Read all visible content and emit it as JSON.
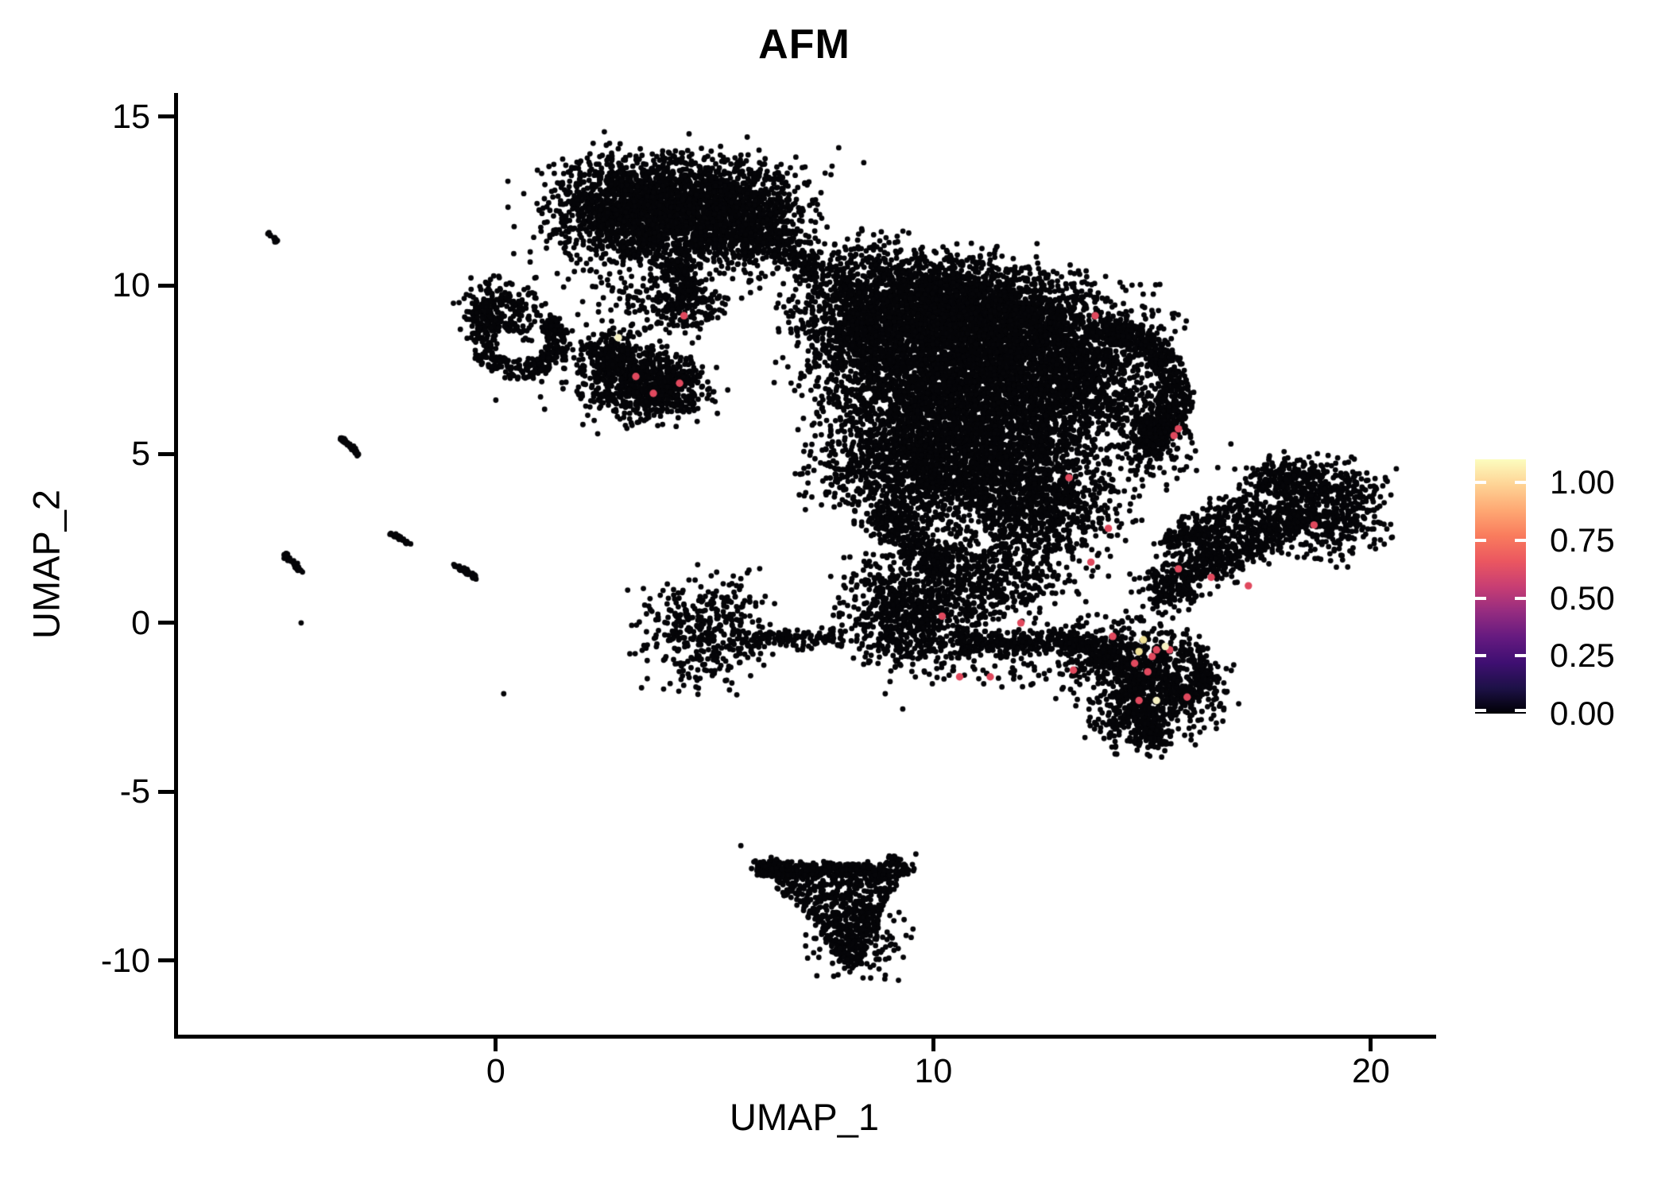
{
  "title": "AFM",
  "axes": {
    "x": {
      "label": "UMAP_1",
      "ticks": [
        {
          "label": "0",
          "value": 0
        },
        {
          "label": "10",
          "value": 10
        },
        {
          "label": "20",
          "value": 20
        }
      ]
    },
    "y": {
      "label": "UMAP_2",
      "ticks": [
        {
          "label": "15",
          "value": 15
        },
        {
          "label": "10",
          "value": 10
        },
        {
          "label": "5",
          "value": 5
        },
        {
          "label": "0",
          "value": 0
        },
        {
          "label": "-5",
          "value": -5
        },
        {
          "label": "-10",
          "value": -10
        }
      ]
    }
  },
  "legend": {
    "tick_labels": [
      "1.00",
      "0.75",
      "0.50",
      "0.25",
      "0.00"
    ],
    "tick_values": [
      1.0,
      0.75,
      0.5,
      0.25,
      0.0
    ],
    "scale_max": 1.1,
    "colormap": "magma",
    "gradient_stops": [
      {
        "t": 0.0,
        "c": "#000004"
      },
      {
        "t": 0.1,
        "c": "#1D1147"
      },
      {
        "t": 0.2,
        "c": "#3F0F72"
      },
      {
        "t": 0.3,
        "c": "#651A80"
      },
      {
        "t": 0.4,
        "c": "#952C80"
      },
      {
        "t": 0.5,
        "c": "#C83E73"
      },
      {
        "t": 0.6,
        "c": "#EB5760"
      },
      {
        "t": 0.7,
        "c": "#F97C5D"
      },
      {
        "t": 0.8,
        "c": "#FEA873"
      },
      {
        "t": 0.9,
        "c": "#FED395"
      },
      {
        "t": 1.0,
        "c": "#FCFDBF"
      }
    ]
  },
  "style": {
    "point_color": "#050508",
    "axis_color": "#000000",
    "background": "#ffffff",
    "highlight_red": "#E0495E",
    "highlight_yellow": "#EFE195",
    "highlight_pale_yellow": "#F6F1C3"
  },
  "chart_data": {
    "type": "scatter",
    "title": "AFM",
    "xlabel": "UMAP_1",
    "ylabel": "UMAP_2",
    "xlim": [
      -7.3,
      21.4
    ],
    "ylim": [
      -12.2,
      15.7
    ],
    "grid": false,
    "legend_position": "right",
    "clusters": [
      {
        "kind": "gauss",
        "cx": 3.0,
        "cy": 12.45,
        "sx": 0.85,
        "sy": 0.7,
        "n": 850
      },
      {
        "kind": "gauss",
        "cx": 4.7,
        "cy": 12.6,
        "sx": 1.05,
        "sy": 0.6,
        "n": 850
      },
      {
        "kind": "gauss",
        "cx": 4.0,
        "cy": 11.5,
        "sx": 1.25,
        "sy": 0.55,
        "n": 700
      },
      {
        "kind": "gauss",
        "cx": 5.9,
        "cy": 11.95,
        "sx": 0.65,
        "sy": 0.75,
        "n": 420
      },
      {
        "kind": "gauss",
        "cx": 4.2,
        "cy": 12.2,
        "sx": 1.8,
        "sy": 1.05,
        "n": 260
      },
      {
        "kind": "band",
        "x1": 4.05,
        "y1": 10.7,
        "x2": 4.45,
        "y2": 9.7,
        "w": 0.32,
        "n": 130
      },
      {
        "kind": "gauss",
        "cx": 4.35,
        "cy": 9.35,
        "sx": 0.45,
        "sy": 0.38,
        "n": 170
      },
      {
        "kind": "gauss",
        "cx": 3.4,
        "cy": 9.9,
        "sx": 0.7,
        "sy": 0.55,
        "n": 110
      },
      {
        "kind": "band",
        "x1": 6.35,
        "y1": 11.5,
        "x2": 7.35,
        "y2": 10.3,
        "w": 0.45,
        "n": 120
      },
      {
        "kind": "gauss",
        "cx": 0.0,
        "cy": 9.35,
        "sx": 0.42,
        "sy": 0.4,
        "n": 210
      },
      {
        "kind": "arc",
        "cx": 0.55,
        "cy": 8.35,
        "r0": 0.6,
        "r1": 1.12,
        "a0": 130,
        "a1": 405,
        "n": 330
      },
      {
        "kind": "gauss",
        "cx": 0.95,
        "cy": 8.9,
        "sx": 0.5,
        "sy": 0.4,
        "n": 45
      },
      {
        "kind": "gauss",
        "cx": 2.72,
        "cy": 7.9,
        "sx": 0.42,
        "sy": 0.38,
        "n": 260
      },
      {
        "kind": "gauss",
        "cx": 3.3,
        "cy": 7.0,
        "sx": 0.62,
        "sy": 0.5,
        "n": 430
      },
      {
        "kind": "gauss",
        "cx": 4.05,
        "cy": 6.95,
        "sx": 0.42,
        "sy": 0.36,
        "n": 210
      },
      {
        "kind": "gauss",
        "cx": 3.2,
        "cy": 7.3,
        "sx": 1.0,
        "sy": 0.8,
        "n": 130
      },
      {
        "kind": "gauss",
        "cx": 8.6,
        "cy": 9.0,
        "sx": 0.9,
        "sy": 1.05,
        "n": 1350
      },
      {
        "kind": "gauss",
        "cx": 10.3,
        "cy": 9.25,
        "sx": 1.05,
        "sy": 0.85,
        "n": 1500
      },
      {
        "kind": "gauss",
        "cx": 11.9,
        "cy": 8.6,
        "sx": 1.0,
        "sy": 0.9,
        "n": 1400
      },
      {
        "kind": "gauss",
        "cx": 10.0,
        "cy": 6.8,
        "sx": 1.3,
        "sy": 0.95,
        "n": 1550
      },
      {
        "kind": "gauss",
        "cx": 11.8,
        "cy": 6.15,
        "sx": 1.15,
        "sy": 0.9,
        "n": 1250
      },
      {
        "kind": "gauss",
        "cx": 13.4,
        "cy": 7.6,
        "sx": 0.7,
        "sy": 1.0,
        "n": 750
      },
      {
        "kind": "arc",
        "cx": 13.6,
        "cy": 6.8,
        "r0": 1.6,
        "r1": 2.25,
        "a0": -55,
        "a1": 80,
        "n": 520
      },
      {
        "kind": "gauss",
        "cx": 15.0,
        "cy": 5.8,
        "sx": 0.45,
        "sy": 0.75,
        "n": 320
      },
      {
        "kind": "gauss",
        "cx": 14.6,
        "cy": 8.6,
        "sx": 0.55,
        "sy": 0.6,
        "n": 110
      },
      {
        "kind": "gauss",
        "cx": 9.3,
        "cy": 4.6,
        "sx": 1.0,
        "sy": 0.8,
        "n": 850
      },
      {
        "kind": "gauss",
        "cx": 11.2,
        "cy": 4.2,
        "sx": 1.1,
        "sy": 0.8,
        "n": 780
      },
      {
        "kind": "gauss",
        "cx": 12.7,
        "cy": 3.6,
        "sx": 0.85,
        "sy": 0.75,
        "n": 560
      },
      {
        "kind": "band",
        "x1": 8.7,
        "y1": 3.3,
        "x2": 10.2,
        "y2": 1.7,
        "w": 0.5,
        "n": 300
      },
      {
        "kind": "gauss",
        "cx": 12.1,
        "cy": 1.9,
        "sx": 0.8,
        "sy": 0.7,
        "n": 300
      },
      {
        "kind": "gauss",
        "cx": 10.9,
        "cy": 1.1,
        "sx": 0.8,
        "sy": 0.7,
        "n": 340
      },
      {
        "kind": "gauss",
        "cx": 9.4,
        "cy": 0.3,
        "sx": 0.72,
        "sy": 0.85,
        "n": 750
      },
      {
        "kind": "band",
        "x1": 10.5,
        "y1": -0.62,
        "x2": 13.3,
        "y2": -0.5,
        "w": 0.42,
        "n": 270
      },
      {
        "kind": "gauss",
        "cx": 11.6,
        "cy": -1.3,
        "sx": 0.8,
        "sy": 0.45,
        "n": 60
      },
      {
        "kind": "gauss",
        "cx": 4.8,
        "cy": -0.2,
        "sx": 0.72,
        "sy": 0.78,
        "n": 400
      },
      {
        "kind": "band",
        "x1": 5.7,
        "y1": -0.5,
        "x2": 7.9,
        "y2": -0.45,
        "w": 0.3,
        "n": 130
      },
      {
        "kind": "gauss",
        "cx": 7.6,
        "cy": 10.4,
        "sx": 0.5,
        "sy": 0.5,
        "n": 55
      },
      {
        "kind": "band",
        "x1": 15.0,
        "y1": 0.85,
        "x2": 18.2,
        "y2": 3.2,
        "w": 0.72,
        "n": 680
      },
      {
        "kind": "gauss",
        "cx": 18.9,
        "cy": 3.35,
        "sx": 0.72,
        "sy": 0.72,
        "n": 560
      },
      {
        "kind": "band",
        "x1": 15.3,
        "y1": 2.25,
        "x2": 17.3,
        "y2": 3.6,
        "w": 0.5,
        "n": 240
      },
      {
        "kind": "gauss",
        "cx": 17.9,
        "cy": 4.3,
        "sx": 0.45,
        "sy": 0.33,
        "n": 140
      },
      {
        "kind": "gauss",
        "cx": 14.4,
        "cy": -1.05,
        "sx": 0.8,
        "sy": 0.6,
        "n": 480
      },
      {
        "kind": "gauss",
        "cx": 15.25,
        "cy": -2.0,
        "sx": 0.7,
        "sy": 0.65,
        "n": 430
      },
      {
        "kind": "gauss",
        "cx": 14.6,
        "cy": -2.8,
        "sx": 0.5,
        "sy": 0.5,
        "n": 240
      },
      {
        "kind": "band",
        "x1": 13.1,
        "y1": -0.6,
        "x2": 14.2,
        "y2": -0.9,
        "w": 0.38,
        "n": 140
      },
      {
        "kind": "arc",
        "cx": 15.2,
        "cy": -1.5,
        "r0": 0.8,
        "r1": 1.15,
        "a0": -60,
        "a1": 60,
        "n": 140
      },
      {
        "kind": "band",
        "x1": 14.95,
        "y1": -3.1,
        "x2": 15.2,
        "y2": -3.6,
        "w": 0.28,
        "n": 70
      },
      {
        "kind": "tri",
        "ax": 5.85,
        "ay": -7.05,
        "bx": 9.4,
        "by": -7.15,
        "cx2": 8.2,
        "cy2": -10.35,
        "n": 620
      },
      {
        "kind": "band",
        "x1": 5.95,
        "y1": -7.25,
        "x2": 9.15,
        "y2": -7.45,
        "w": 0.28,
        "n": 240
      },
      {
        "kind": "gauss",
        "cx": 8.3,
        "cy": -9.5,
        "sx": 0.5,
        "sy": 0.5,
        "n": 180
      },
      {
        "kind": "band",
        "x1": 9.0,
        "y1": -7.0,
        "x2": 9.5,
        "y2": -7.35,
        "w": 0.18,
        "n": 40
      },
      {
        "kind": "band",
        "x1": -5.2,
        "y1": 11.55,
        "x2": -5.0,
        "y2": 11.3,
        "w": 0.05,
        "n": 14
      },
      {
        "kind": "band",
        "x1": -3.55,
        "y1": 5.5,
        "x2": -3.12,
        "y2": 4.95,
        "w": 0.06,
        "n": 45
      },
      {
        "kind": "band",
        "x1": -2.4,
        "y1": 2.7,
        "x2": -1.95,
        "y2": 2.32,
        "w": 0.07,
        "n": 30
      },
      {
        "kind": "band",
        "x1": -4.85,
        "y1": 2.05,
        "x2": -4.42,
        "y2": 1.5,
        "w": 0.07,
        "n": 35
      },
      {
        "kind": "band",
        "x1": -0.95,
        "y1": 1.75,
        "x2": -0.44,
        "y2": 1.32,
        "w": 0.07,
        "n": 40
      }
    ],
    "singles": [
      [
        -4.45,
        0.0
      ],
      [
        0.18,
        -2.1
      ],
      [
        4.6,
        -1.7
      ],
      [
        6.9,
        12.9
      ],
      [
        7.4,
        12.1
      ],
      [
        7.3,
        11.4
      ],
      [
        6.6,
        10.9
      ],
      [
        8.0,
        9.9
      ],
      [
        2.0,
        10.45
      ],
      [
        1.55,
        9.95
      ],
      [
        0.0,
        6.6
      ],
      [
        2.1,
        6.15
      ],
      [
        4.95,
        6.6
      ],
      [
        5.3,
        6.9
      ],
      [
        5.6,
        -6.6
      ],
      [
        9.6,
        -6.85
      ],
      [
        8.9,
        -2.1
      ],
      [
        9.3,
        -2.55
      ],
      [
        12.6,
        10.3
      ],
      [
        14.4,
        9.85
      ],
      [
        16.8,
        5.3
      ],
      [
        16.5,
        4.6
      ],
      [
        7.0,
        11.9
      ]
    ],
    "highlights": [
      {
        "x": 4.3,
        "y": 9.1,
        "value": 0.7,
        "color": "#E0495E"
      },
      {
        "x": 3.2,
        "y": 7.3,
        "value": 0.7,
        "color": "#E0495E"
      },
      {
        "x": 3.6,
        "y": 6.8,
        "value": 0.7,
        "color": "#E0495E"
      },
      {
        "x": 4.2,
        "y": 7.1,
        "value": 0.7,
        "color": "#E0495E"
      },
      {
        "x": 13.7,
        "y": 9.1,
        "value": 0.7,
        "color": "#E0495E"
      },
      {
        "x": 15.5,
        "y": 5.55,
        "value": 0.7,
        "color": "#E0495E"
      },
      {
        "x": 15.6,
        "y": 5.75,
        "value": 0.7,
        "color": "#E0495E"
      },
      {
        "x": 13.1,
        "y": 4.3,
        "value": 0.7,
        "color": "#E0495E"
      },
      {
        "x": 14.0,
        "y": 2.8,
        "value": 0.7,
        "color": "#E0495E"
      },
      {
        "x": 13.6,
        "y": 1.8,
        "value": 0.7,
        "color": "#E0495E"
      },
      {
        "x": 15.6,
        "y": 1.6,
        "value": 0.7,
        "color": "#E0495E"
      },
      {
        "x": 16.35,
        "y": 1.35,
        "value": 0.7,
        "color": "#E0495E"
      },
      {
        "x": 17.2,
        "y": 1.1,
        "value": 0.7,
        "color": "#E0495E"
      },
      {
        "x": 18.7,
        "y": 2.9,
        "value": 0.7,
        "color": "#E0495E"
      },
      {
        "x": 10.2,
        "y": 0.2,
        "value": 0.7,
        "color": "#E0495E"
      },
      {
        "x": 12.0,
        "y": 0.0,
        "value": 0.7,
        "color": "#E0495E"
      },
      {
        "x": 14.1,
        "y": -0.4,
        "value": 0.7,
        "color": "#E0495E"
      },
      {
        "x": 15.1,
        "y": -0.8,
        "value": 0.7,
        "color": "#E0495E"
      },
      {
        "x": 15.4,
        "y": -0.8,
        "value": 0.7,
        "color": "#E0495E"
      },
      {
        "x": 15.0,
        "y": -1.0,
        "value": 0.7,
        "color": "#E0495E"
      },
      {
        "x": 14.6,
        "y": -1.2,
        "value": 0.7,
        "color": "#E0495E"
      },
      {
        "x": 14.9,
        "y": -1.45,
        "value": 0.7,
        "color": "#E0495E"
      },
      {
        "x": 13.2,
        "y": -1.4,
        "value": 0.7,
        "color": "#E0495E"
      },
      {
        "x": 10.6,
        "y": -1.6,
        "value": 0.7,
        "color": "#E0495E"
      },
      {
        "x": 11.3,
        "y": -1.6,
        "value": 0.7,
        "color": "#E0495E"
      },
      {
        "x": 14.7,
        "y": -2.3,
        "value": 0.7,
        "color": "#E0495E"
      },
      {
        "x": 15.8,
        "y": -2.2,
        "value": 0.7,
        "color": "#E0495E"
      },
      {
        "x": 14.8,
        "y": -0.5,
        "value": 0.95,
        "color": "#EFE195"
      },
      {
        "x": 14.7,
        "y": -0.85,
        "value": 0.95,
        "color": "#EFE195"
      },
      {
        "x": 15.3,
        "y": -0.7,
        "value": 1.0,
        "color": "#F6F1C3"
      },
      {
        "x": 2.8,
        "y": 8.45,
        "value": 1.0,
        "color": "#F6F1C3"
      },
      {
        "x": 15.1,
        "y": -2.3,
        "value": 1.0,
        "color": "#F6F1C3"
      }
    ]
  }
}
